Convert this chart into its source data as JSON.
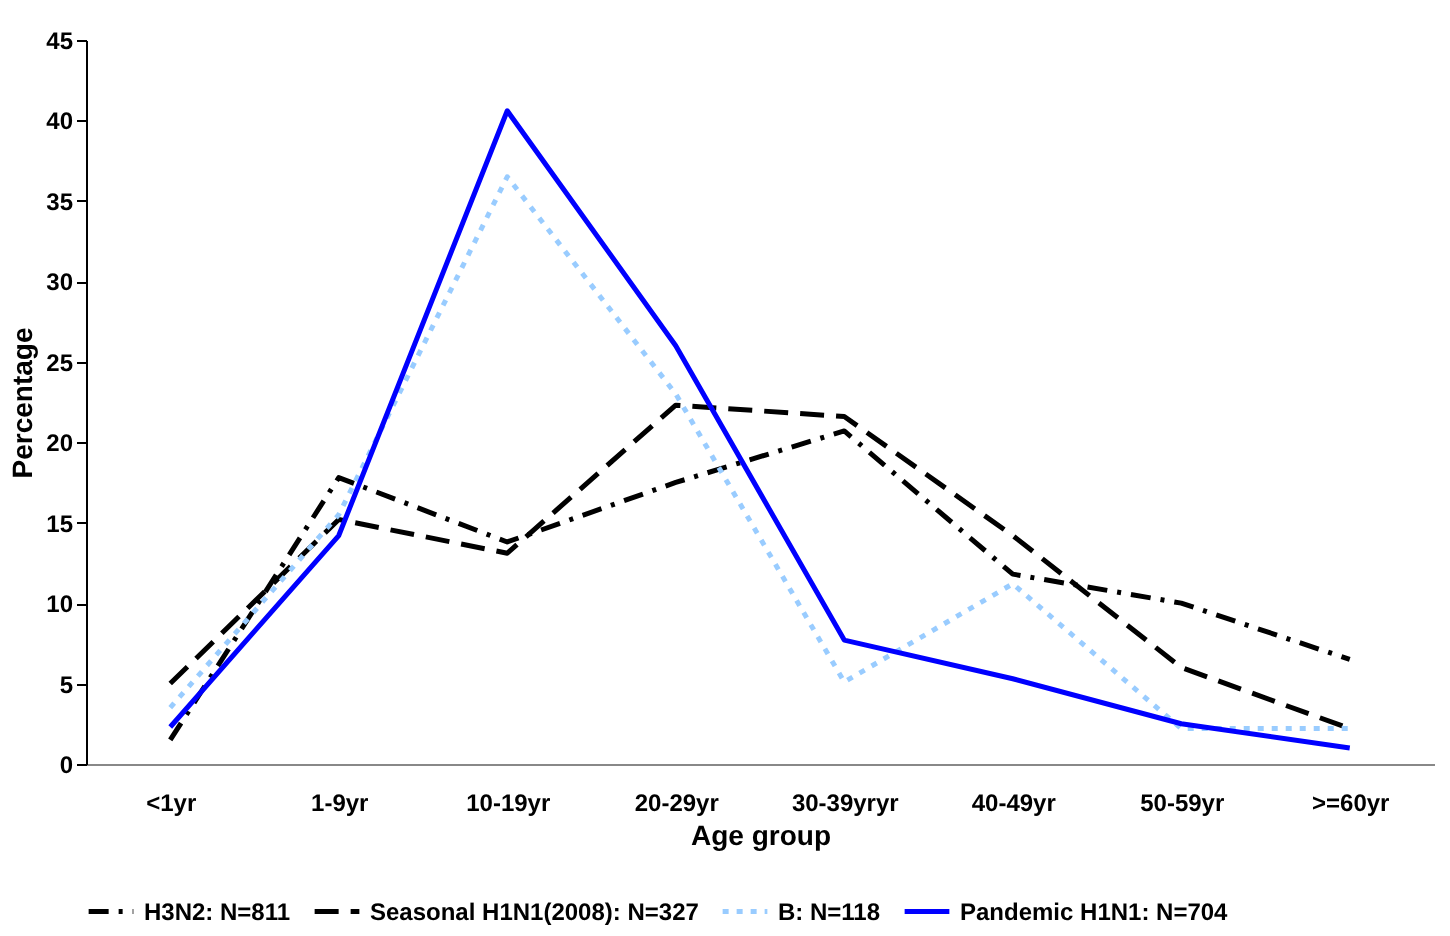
{
  "chart_data": {
    "type": "line",
    "xlabel": "Age group",
    "ylabel": "Percentage",
    "categories": [
      "<1yr",
      "1-9yr",
      "10-19yr",
      "20-29yr",
      "30-39yryr",
      "40-49yr",
      "50-59yr",
      ">=60yr"
    ],
    "series": [
      {
        "name": "H3N2: N=811",
        "color": "#000000",
        "line_style": "dashdot",
        "values": [
          1.5,
          17.8,
          13.8,
          17.5,
          20.7,
          11.8,
          10.0,
          6.5
        ]
      },
      {
        "name": "Seasonal H1N1(2008): N=327",
        "color": "#000000",
        "line_style": "dashed",
        "values": [
          5.0,
          15.2,
          13.1,
          22.3,
          21.6,
          14.2,
          6.0,
          2.2
        ]
      },
      {
        "name": "B: N=118",
        "color": "#99ccff",
        "line_style": "dotted",
        "values": [
          3.5,
          15.5,
          36.5,
          23.0,
          5.1,
          11.2,
          2.2,
          2.2
        ]
      },
      {
        "name": "Pandemic H1N1: N=704",
        "color": "#0000ff",
        "line_style": "solid",
        "values": [
          2.3,
          14.2,
          40.6,
          26.0,
          7.7,
          5.3,
          2.5,
          1.0
        ]
      }
    ],
    "ylim": [
      0,
      45
    ],
    "yticks": [
      0,
      5,
      10,
      15,
      20,
      25,
      30,
      35,
      40,
      45
    ],
    "grid": false,
    "legend": "bottom",
    "marker": "none"
  }
}
